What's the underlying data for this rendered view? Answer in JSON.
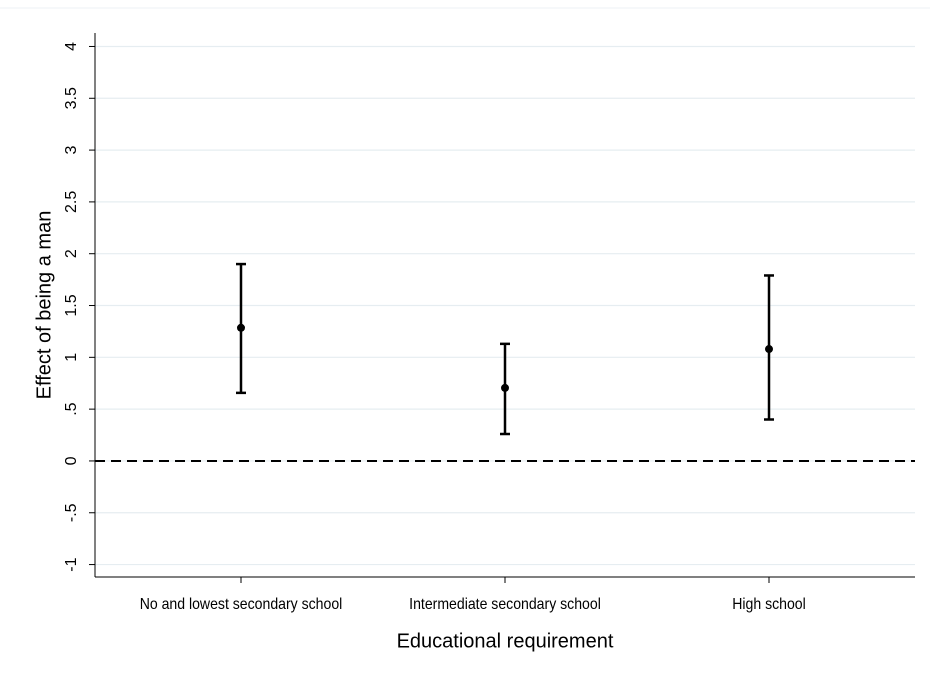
{
  "chart_data": {
    "type": "errorbar",
    "x_label": "Educational requirement",
    "y_label": "Effect of being a man",
    "categories": [
      "No and lowest secondary school",
      "Intermediate secondary school",
      "High school"
    ],
    "series": [
      {
        "color": "#000000",
        "values": [
          1.285,
          0.705,
          1.08
        ],
        "lower": [
          0.657,
          0.26,
          0.4
        ],
        "upper": [
          1.9,
          1.13,
          1.79
        ]
      }
    ],
    "ylim": [
      -1.12,
      4.13
    ],
    "yticks": [
      -1,
      {
        "value": -0.5,
        "label": "-.5"
      },
      0,
      {
        "value": 0.5,
        "label": ".5"
      },
      1,
      1.5,
      2,
      2.5,
      3,
      3.5,
      4
    ],
    "grid": true,
    "reference_line": 0
  }
}
